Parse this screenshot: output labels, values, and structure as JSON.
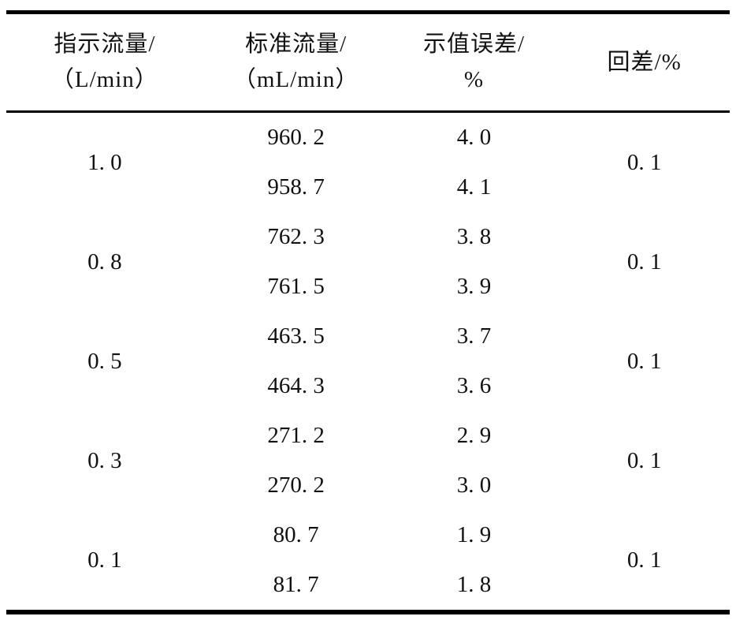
{
  "page": {
    "background_color": "#ffffff",
    "rule_color": "#000000",
    "text_color": "#111111"
  },
  "table": {
    "headers": [
      {
        "line1": "指示流量/",
        "line2": "（L/min）"
      },
      {
        "line1": "标准流量/",
        "line2": "（mL/min）"
      },
      {
        "line1": "示值误差/",
        "line2": "%"
      },
      {
        "line1": "回差/%",
        "line2": ""
      }
    ],
    "groups": [
      {
        "indicated_flow": "1. 0",
        "hysteresis": "0. 1",
        "measurements": [
          {
            "standard_flow": "960. 2",
            "error": "4. 0"
          },
          {
            "standard_flow": "958. 7",
            "error": "4. 1"
          }
        ]
      },
      {
        "indicated_flow": "0. 8",
        "hysteresis": "0. 1",
        "measurements": [
          {
            "standard_flow": "762. 3",
            "error": "3. 8"
          },
          {
            "standard_flow": "761. 5",
            "error": "3. 9"
          }
        ]
      },
      {
        "indicated_flow": "0. 5",
        "hysteresis": "0. 1",
        "measurements": [
          {
            "standard_flow": "463. 5",
            "error": "3. 7"
          },
          {
            "standard_flow": "464. 3",
            "error": "3. 6"
          }
        ]
      },
      {
        "indicated_flow": "0. 3",
        "hysteresis": "0. 1",
        "measurements": [
          {
            "standard_flow": "271. 2",
            "error": "2. 9"
          },
          {
            "standard_flow": "270. 2",
            "error": "3. 0"
          }
        ]
      },
      {
        "indicated_flow": "0. 1",
        "hysteresis": "0. 1",
        "measurements": [
          {
            "standard_flow": "80. 7",
            "error": "1. 9"
          },
          {
            "standard_flow": "81. 7",
            "error": "1. 8"
          }
        ]
      }
    ]
  },
  "chart_data": {
    "type": "table",
    "columns": [
      "指示流量/（L/min）",
      "标准流量/（mL/min）",
      "示值误差/%",
      "回差/%"
    ],
    "rows": [
      [
        1.0,
        960.2,
        4.0,
        0.1
      ],
      [
        1.0,
        958.7,
        4.1,
        0.1
      ],
      [
        0.8,
        762.3,
        3.8,
        0.1
      ],
      [
        0.8,
        761.5,
        3.9,
        0.1
      ],
      [
        0.5,
        463.5,
        3.7,
        0.1
      ],
      [
        0.5,
        464.3,
        3.6,
        0.1
      ],
      [
        0.3,
        271.2,
        2.9,
        0.1
      ],
      [
        0.3,
        270.2,
        3.0,
        0.1
      ],
      [
        0.1,
        80.7,
        1.9,
        0.1
      ],
      [
        0.1,
        81.7,
        1.8,
        0.1
      ]
    ],
    "notes": "Merged cells: 指示流量 and 回差 each span the two repeated measurements of a group. Booktabs-style rules: thick top rule, medium rule under header, thick bottom rule."
  }
}
